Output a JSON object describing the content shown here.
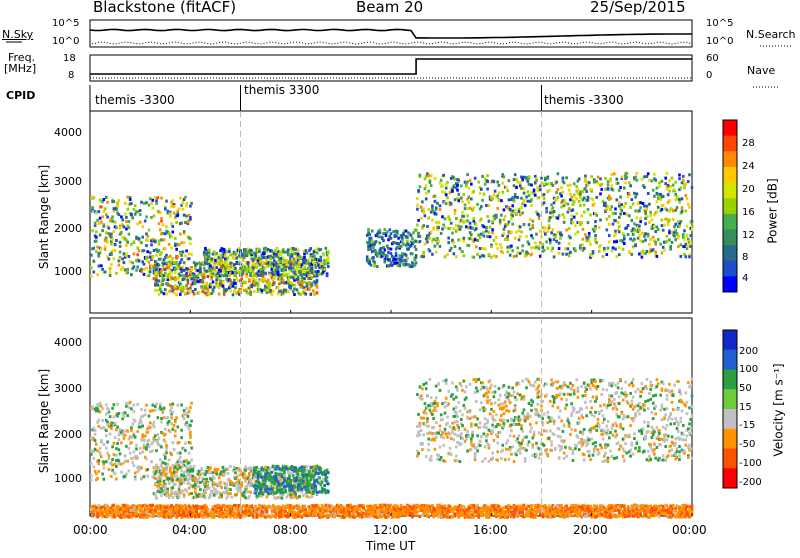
{
  "header": {
    "station": "Blackstone (fitACF)",
    "beam": "Beam 20",
    "date": "25/Sep/2015"
  },
  "panels": {
    "nsky": {
      "label": "N.Sky",
      "ticks": [
        "10^5",
        "10^0"
      ],
      "right_label": "N.Search",
      "right_ticks": [
        "10^5",
        "10^0"
      ]
    },
    "freq": {
      "label_line1": "Freq.",
      "label_line2": "[MHz]",
      "ticks": [
        "18",
        "8"
      ],
      "right_label": "Nave",
      "right_ticks": [
        "60",
        "0"
      ]
    },
    "cpid": {
      "label": "CPID",
      "segments": [
        {
          "text": "themis -3300",
          "start_hour": 0
        },
        {
          "text": "themis 3300",
          "start_hour": 6
        },
        {
          "text": "themis -3300",
          "start_hour": 18
        }
      ]
    }
  },
  "axes": {
    "y_label": "Slant Range [km]",
    "y_ticks": [
      "4000",
      "3000",
      "2000",
      "1000"
    ],
    "x_label": "Time UT",
    "x_ticks": [
      "00:00",
      "04:00",
      "08:00",
      "12:00",
      "16:00",
      "20:00",
      "00:00"
    ]
  },
  "colorbars": {
    "power": {
      "label": "Power [dB]",
      "ticks": [
        "28",
        "24",
        "20",
        "16",
        "12",
        "8",
        "4"
      ],
      "colors": [
        "#ff0000",
        "#ff4500",
        "#ff8c00",
        "#ffc800",
        "#d2e600",
        "#9ad200",
        "#45b04a",
        "#3a8c5a",
        "#266b8c",
        "#1c4fc8",
        "#0000ff"
      ]
    },
    "velocity": {
      "label": "Velocity [m s⁻¹]",
      "ticks": [
        "200",
        "100",
        "50",
        "15",
        "-15",
        "-50",
        "-100",
        "-200"
      ],
      "colors": [
        "#1428c8",
        "#2060d0",
        "#2aa040",
        "#6ccc3c",
        "#c0c0c0",
        "#ff9400",
        "#ff5000",
        "#ff0000"
      ]
    }
  },
  "chart_data": [
    {
      "type": "heatmap",
      "title": "Power",
      "xlabel": "Time UT",
      "ylabel": "Slant Range [km]",
      "xlim": [
        0,
        24
      ],
      "ylim": [
        180,
        4500
      ],
      "colorbar": "Power [dB]",
      "colorbar_range": [
        0,
        30
      ],
      "features": [
        {
          "time_start": 0.0,
          "time_end": 4.0,
          "range_start": 1000,
          "range_end": 2700,
          "peak_db": 26
        },
        {
          "time_start": 2.5,
          "time_end": 9.0,
          "range_start": 600,
          "range_end": 1300,
          "peak_db": 28
        },
        {
          "time_start": 4.5,
          "time_end": 9.5,
          "range_start": 1000,
          "range_end": 1600,
          "peak_db": 22
        },
        {
          "time_start": 11.0,
          "time_end": 13.0,
          "range_start": 1200,
          "range_end": 2000,
          "peak_db": 14
        },
        {
          "time_start": 13.0,
          "time_end": 24.0,
          "range_start": 1400,
          "range_end": 3200,
          "peak_db": 24
        }
      ]
    },
    {
      "type": "heatmap",
      "title": "Velocity",
      "xlabel": "Time UT",
      "ylabel": "Slant Range [km]",
      "xlim": [
        0,
        24
      ],
      "ylim": [
        180,
        4500
      ],
      "colorbar": "Velocity [m s-1]",
      "colorbar_range": [
        -250,
        250
      ],
      "features": [
        {
          "time_start": 0.0,
          "time_end": 4.0,
          "range_start": 1000,
          "range_end": 2700,
          "velocity": 0
        },
        {
          "time_start": 2.5,
          "time_end": 9.0,
          "range_start": 600,
          "range_end": 1300,
          "velocity": 0
        },
        {
          "time_start": 6.5,
          "time_end": 9.5,
          "range_start": 700,
          "range_end": 1300,
          "velocity": 40
        },
        {
          "time_start": 13.0,
          "time_end": 24.0,
          "range_start": 1400,
          "range_end": 3200,
          "velocity": 0
        },
        {
          "time_start": 0.0,
          "time_end": 24.0,
          "range_start": 180,
          "range_end": 450,
          "velocity": -40
        }
      ]
    }
  ]
}
